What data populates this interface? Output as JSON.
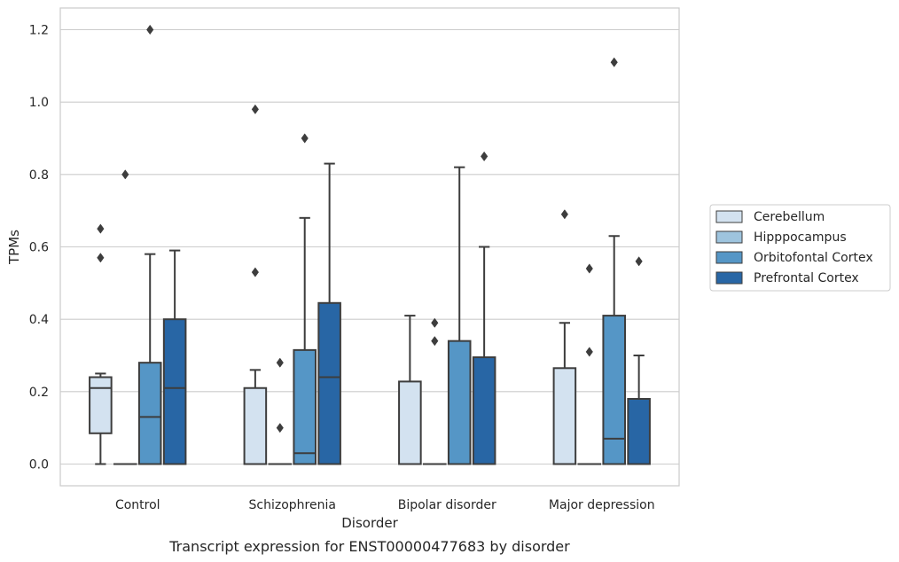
{
  "chart_data": {
    "type": "box",
    "caption": "Transcript expression for ENST00000477683 by disorder",
    "xlabel": "Disorder",
    "ylabel": "TPMs",
    "ylim": [
      -0.06,
      1.26
    ],
    "yticks": [
      0.0,
      0.2,
      0.4,
      0.6,
      0.8,
      1.0,
      1.2
    ],
    "ytick_labels": [
      "0.0",
      "0.2",
      "0.4",
      "0.6",
      "0.8",
      "1.0",
      "1.2"
    ],
    "grid": "horizontal",
    "legend_position": "right",
    "categories": [
      "Control",
      "Schizophrenia",
      "Bipolar disorder",
      "Major depression"
    ],
    "series": [
      {
        "name": "Cerebellum",
        "color": "#d3e2f0",
        "boxes": [
          {
            "whislo": 0.0,
            "q1": 0.085,
            "med": 0.21,
            "q3": 0.24,
            "whishi": 0.25,
            "fliers": [
              0.57,
              0.65
            ]
          },
          {
            "whislo": 0.0,
            "q1": 0.0,
            "med": 0.0,
            "q3": 0.21,
            "whishi": 0.26,
            "fliers": [
              0.53,
              0.98
            ]
          },
          {
            "whislo": 0.0,
            "q1": 0.0,
            "med": 0.0,
            "q3": 0.228,
            "whishi": 0.41,
            "fliers": []
          },
          {
            "whislo": 0.0,
            "q1": 0.0,
            "med": 0.0,
            "q3": 0.265,
            "whishi": 0.39,
            "fliers": [
              0.69
            ]
          }
        ]
      },
      {
        "name": "Hipppocampus",
        "color": "#9ec4de",
        "boxes": [
          {
            "whislo": 0.0,
            "q1": 0.0,
            "med": 0.0,
            "q3": 0.0,
            "whishi": 0.0,
            "fliers": [
              0.8
            ]
          },
          {
            "whislo": 0.0,
            "q1": 0.0,
            "med": 0.0,
            "q3": 0.0,
            "whishi": 0.0,
            "fliers": [
              0.1,
              0.28
            ]
          },
          {
            "whislo": 0.0,
            "q1": 0.0,
            "med": 0.0,
            "q3": 0.0,
            "whishi": 0.0,
            "fliers": [
              0.34,
              0.39
            ]
          },
          {
            "whislo": 0.0,
            "q1": 0.0,
            "med": 0.0,
            "q3": 0.0,
            "whishi": 0.0,
            "fliers": [
              0.31,
              0.54
            ]
          }
        ]
      },
      {
        "name": "Orbitofontal Cortex",
        "color": "#5596c6",
        "boxes": [
          {
            "whislo": 0.0,
            "q1": 0.0,
            "med": 0.13,
            "q3": 0.28,
            "whishi": 0.58,
            "fliers": [
              1.2
            ]
          },
          {
            "whislo": 0.0,
            "q1": 0.0,
            "med": 0.03,
            "q3": 0.315,
            "whishi": 0.68,
            "fliers": [
              0.9
            ]
          },
          {
            "whislo": 0.0,
            "q1": 0.0,
            "med": 0.0,
            "q3": 0.34,
            "whishi": 0.82,
            "fliers": []
          },
          {
            "whislo": 0.0,
            "q1": 0.0,
            "med": 0.07,
            "q3": 0.41,
            "whishi": 0.63,
            "fliers": [
              1.11
            ]
          }
        ]
      },
      {
        "name": "Prefrontal Cortex",
        "color": "#2866a5",
        "boxes": [
          {
            "whislo": 0.0,
            "q1": 0.0,
            "med": 0.21,
            "q3": 0.4,
            "whishi": 0.59,
            "fliers": []
          },
          {
            "whislo": 0.0,
            "q1": 0.0,
            "med": 0.24,
            "q3": 0.445,
            "whishi": 0.83,
            "fliers": []
          },
          {
            "whislo": 0.0,
            "q1": 0.0,
            "med": 0.0,
            "q3": 0.295,
            "whishi": 0.6,
            "fliers": [
              0.85
            ]
          },
          {
            "whislo": 0.0,
            "q1": 0.0,
            "med": 0.0,
            "q3": 0.18,
            "whishi": 0.3,
            "fliers": [
              0.56
            ]
          }
        ]
      }
    ]
  }
}
